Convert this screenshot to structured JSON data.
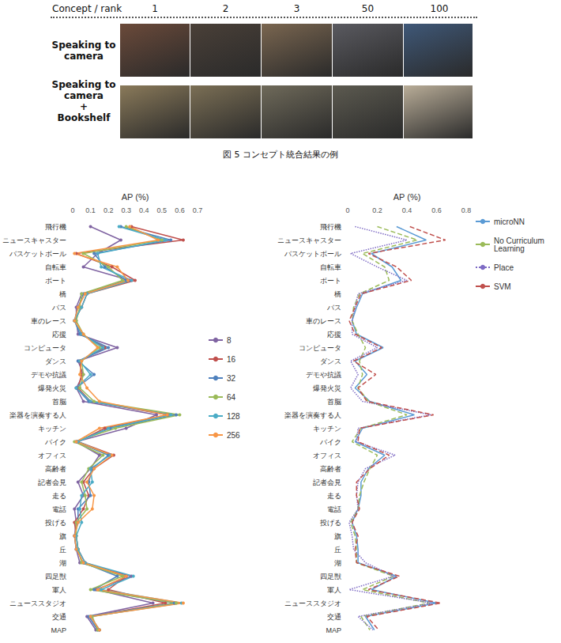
{
  "figure": {
    "header": {
      "title": "Concept / rank",
      "ranks": [
        1,
        2,
        3,
        50,
        100
      ]
    },
    "rows": [
      {
        "label": [
          "Speaking to camera"
        ]
      },
      {
        "label": [
          "Speaking to camera",
          "+",
          "Bookshelf"
        ]
      }
    ],
    "caption": "図 5 コンセプト統合結果の例"
  },
  "chart_data": [
    {
      "type": "line",
      "orientation": "horizontal",
      "xlabel": "AP (%)",
      "categories": [
        "飛行機",
        "ニュースキャスター",
        "バスケットボール",
        "自転車",
        "ボート",
        "橋",
        "バス",
        "車のレース",
        "応援",
        "コンピュータ",
        "ダンス",
        "デモや抗議",
        "爆発火災",
        "首脳",
        "楽器を演奏する人",
        "キッチン",
        "バイク",
        "オフィス",
        "高齢者",
        "記者会見",
        "走る",
        "電話",
        "投げる",
        "旗",
        "丘",
        "湖",
        "四足獣",
        "軍人",
        "ニューススタジオ",
        "交通",
        "MAP"
      ],
      "xlim": [
        0,
        0.7
      ],
      "xticks": [
        0,
        0.1,
        0.2,
        0.3,
        0.4,
        0.5,
        0.6,
        0.7
      ],
      "grid": false,
      "legend": "right",
      "marker": "circle",
      "series": [
        {
          "name": "8",
          "color": "#8064a2",
          "line_style": "solid",
          "values": [
            0.1,
            0.27,
            0.14,
            0.06,
            0.32,
            0.05,
            0.02,
            0.02,
            0.03,
            0.25,
            0.03,
            0.06,
            0.02,
            0.06,
            0.47,
            0.3,
            0.02,
            0.15,
            0.1,
            0.03,
            0.06,
            0.01,
            0.02,
            0.01,
            0.02,
            0.04,
            0.33,
            0.13,
            0.45,
            0.08,
            0.13
          ]
        },
        {
          "name": "16",
          "color": "#c0504d",
          "line_style": "solid",
          "values": [
            0.33,
            0.62,
            0.02,
            0.22,
            0.35,
            0.08,
            0.05,
            0.01,
            0.05,
            0.18,
            0.04,
            0.05,
            0.03,
            0.1,
            0.53,
            0.18,
            0.03,
            0.23,
            0.12,
            0.06,
            0.09,
            0.06,
            0.01,
            0.02,
            0.03,
            0.07,
            0.3,
            0.2,
            0.52,
            0.1,
            0.15
          ]
        },
        {
          "name": "32",
          "color": "#4f81bd",
          "line_style": "solid",
          "values": [
            0.27,
            0.55,
            0.12,
            0.18,
            0.3,
            0.06,
            0.03,
            0.01,
            0.04,
            0.2,
            0.03,
            0.12,
            0.02,
            0.09,
            0.58,
            0.21,
            0.02,
            0.2,
            0.11,
            0.09,
            0.1,
            0.03,
            0.03,
            0.01,
            0.02,
            0.06,
            0.25,
            0.12,
            0.57,
            0.09,
            0.14
          ]
        },
        {
          "name": "64",
          "color": "#9bbb59",
          "line_style": "solid",
          "values": [
            0.3,
            0.5,
            0.06,
            0.2,
            0.28,
            0.05,
            0.04,
            0.02,
            0.06,
            0.15,
            0.05,
            0.06,
            0.04,
            0.12,
            0.6,
            0.24,
            0.01,
            0.17,
            0.09,
            0.05,
            0.07,
            0.08,
            0.02,
            0.02,
            0.03,
            0.05,
            0.28,
            0.1,
            0.58,
            0.11,
            0.14
          ]
        },
        {
          "name": "128",
          "color": "#4bacc6",
          "line_style": "solid",
          "values": [
            0.26,
            0.52,
            0.14,
            0.16,
            0.33,
            0.08,
            0.05,
            0.01,
            0.05,
            0.17,
            0.04,
            0.1,
            0.02,
            0.1,
            0.55,
            0.2,
            0.03,
            0.21,
            0.1,
            0.11,
            0.05,
            0.04,
            0.05,
            0.02,
            0.03,
            0.07,
            0.34,
            0.16,
            0.61,
            0.1,
            0.15
          ]
        },
        {
          "name": "256",
          "color": "#f79646",
          "line_style": "solid",
          "values": [
            0.32,
            0.48,
            0.01,
            0.25,
            0.31,
            0.07,
            0.03,
            0.01,
            0.06,
            0.14,
            0.05,
            0.04,
            0.08,
            0.15,
            0.53,
            0.15,
            0.02,
            0.22,
            0.12,
            0.08,
            0.12,
            0.11,
            0.03,
            0.01,
            0.02,
            0.06,
            0.3,
            0.14,
            0.62,
            0.1,
            0.15
          ]
        }
      ]
    },
    {
      "type": "line",
      "orientation": "horizontal",
      "xlabel": "AP (%)",
      "categories": [
        "飛行機",
        "ニュースキャスター",
        "バスケットボール",
        "自転車",
        "ボート",
        "橋",
        "バス",
        "車のレース",
        "応援",
        "コンピュータ",
        "ダンス",
        "デモや抗議",
        "爆発火災",
        "首脳",
        "楽器を演奏する人",
        "キッチン",
        "バイク",
        "オフィス",
        "高齢者",
        "記者会見",
        "走る",
        "電話",
        "投げる",
        "旗",
        "丘",
        "湖",
        "四足獣",
        "軍人",
        "ニューススタジオ",
        "交通",
        "MAP"
      ],
      "xlim": [
        0,
        0.8
      ],
      "xticks": [
        0,
        0.2,
        0.4,
        0.6,
        0.8
      ],
      "grid": false,
      "legend": "right",
      "marker": "none",
      "series": [
        {
          "name": "microNN",
          "color": "#5b9bd5",
          "line_style": "solid",
          "values": [
            0.33,
            0.53,
            0.16,
            0.3,
            0.36,
            0.1,
            0.06,
            0.03,
            0.06,
            0.24,
            0.05,
            0.13,
            0.05,
            0.15,
            0.45,
            0.1,
            0.05,
            0.25,
            0.14,
            0.09,
            0.09,
            0.07,
            0.03,
            0.06,
            0.07,
            0.07,
            0.33,
            0.16,
            0.6,
            0.12,
            0.18
          ]
        },
        {
          "name": "No Curriculum Learning",
          "color": "#9bbb59",
          "line_style": "dashed",
          "values": [
            0.2,
            0.47,
            0.1,
            0.25,
            0.28,
            0.08,
            0.04,
            0.03,
            0.07,
            0.12,
            0.08,
            0.1,
            0.07,
            0.14,
            0.4,
            0.09,
            0.03,
            0.2,
            0.15,
            0.11,
            0.08,
            0.07,
            0.02,
            0.05,
            0.06,
            0.06,
            0.31,
            0.1,
            0.55,
            0.09,
            0.15
          ]
        },
        {
          "name": "Place",
          "color": "#7e6bc4",
          "line_style": "dotted",
          "values": [
            0.05,
            0.4,
            0.02,
            0.2,
            0.4,
            0.07,
            0.05,
            0.03,
            0.03,
            0.2,
            0.02,
            0.07,
            0.02,
            0.1,
            0.56,
            0.07,
            0.06,
            0.32,
            0.12,
            0.07,
            0.06,
            0.07,
            0.01,
            0.03,
            0.04,
            0.12,
            0.31,
            0.01,
            0.57,
            0.07,
            0.17
          ]
        },
        {
          "name": "SVM",
          "color": "#c0504d",
          "line_style": "dashed",
          "values": [
            0.42,
            0.66,
            0.14,
            0.33,
            0.43,
            0.09,
            0.05,
            0.01,
            0.05,
            0.23,
            0.04,
            0.19,
            0.07,
            0.13,
            0.58,
            0.08,
            0.07,
            0.28,
            0.15,
            0.06,
            0.06,
            0.08,
            0.03,
            0.07,
            0.05,
            0.06,
            0.35,
            0.14,
            0.63,
            0.13,
            0.21
          ]
        }
      ]
    }
  ]
}
